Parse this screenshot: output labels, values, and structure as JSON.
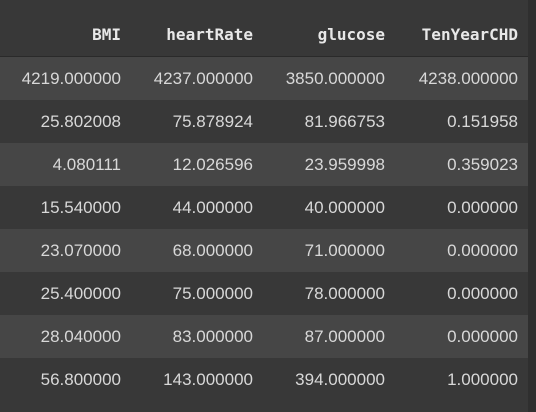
{
  "table": {
    "columns": [
      "BMI",
      "heartRate",
      "glucose",
      "TenYearCHD"
    ],
    "rows": [
      [
        "4219.000000",
        "4237.000000",
        "3850.000000",
        "4238.000000"
      ],
      [
        "25.802008",
        "75.878924",
        "81.966753",
        "0.151958"
      ],
      [
        "4.080111",
        "12.026596",
        "23.959998",
        "0.359023"
      ],
      [
        "15.540000",
        "44.000000",
        "40.000000",
        "0.000000"
      ],
      [
        "23.070000",
        "68.000000",
        "71.000000",
        "0.000000"
      ],
      [
        "25.400000",
        "75.000000",
        "78.000000",
        "0.000000"
      ],
      [
        "28.040000",
        "83.000000",
        "87.000000",
        "0.000000"
      ],
      [
        "56.800000",
        "143.000000",
        "394.000000",
        "1.000000"
      ]
    ]
  },
  "colors": {
    "background": "#383838",
    "stripe": "#464646",
    "header_text": "#e8e8e8",
    "cell_text": "#d8d8d8"
  }
}
